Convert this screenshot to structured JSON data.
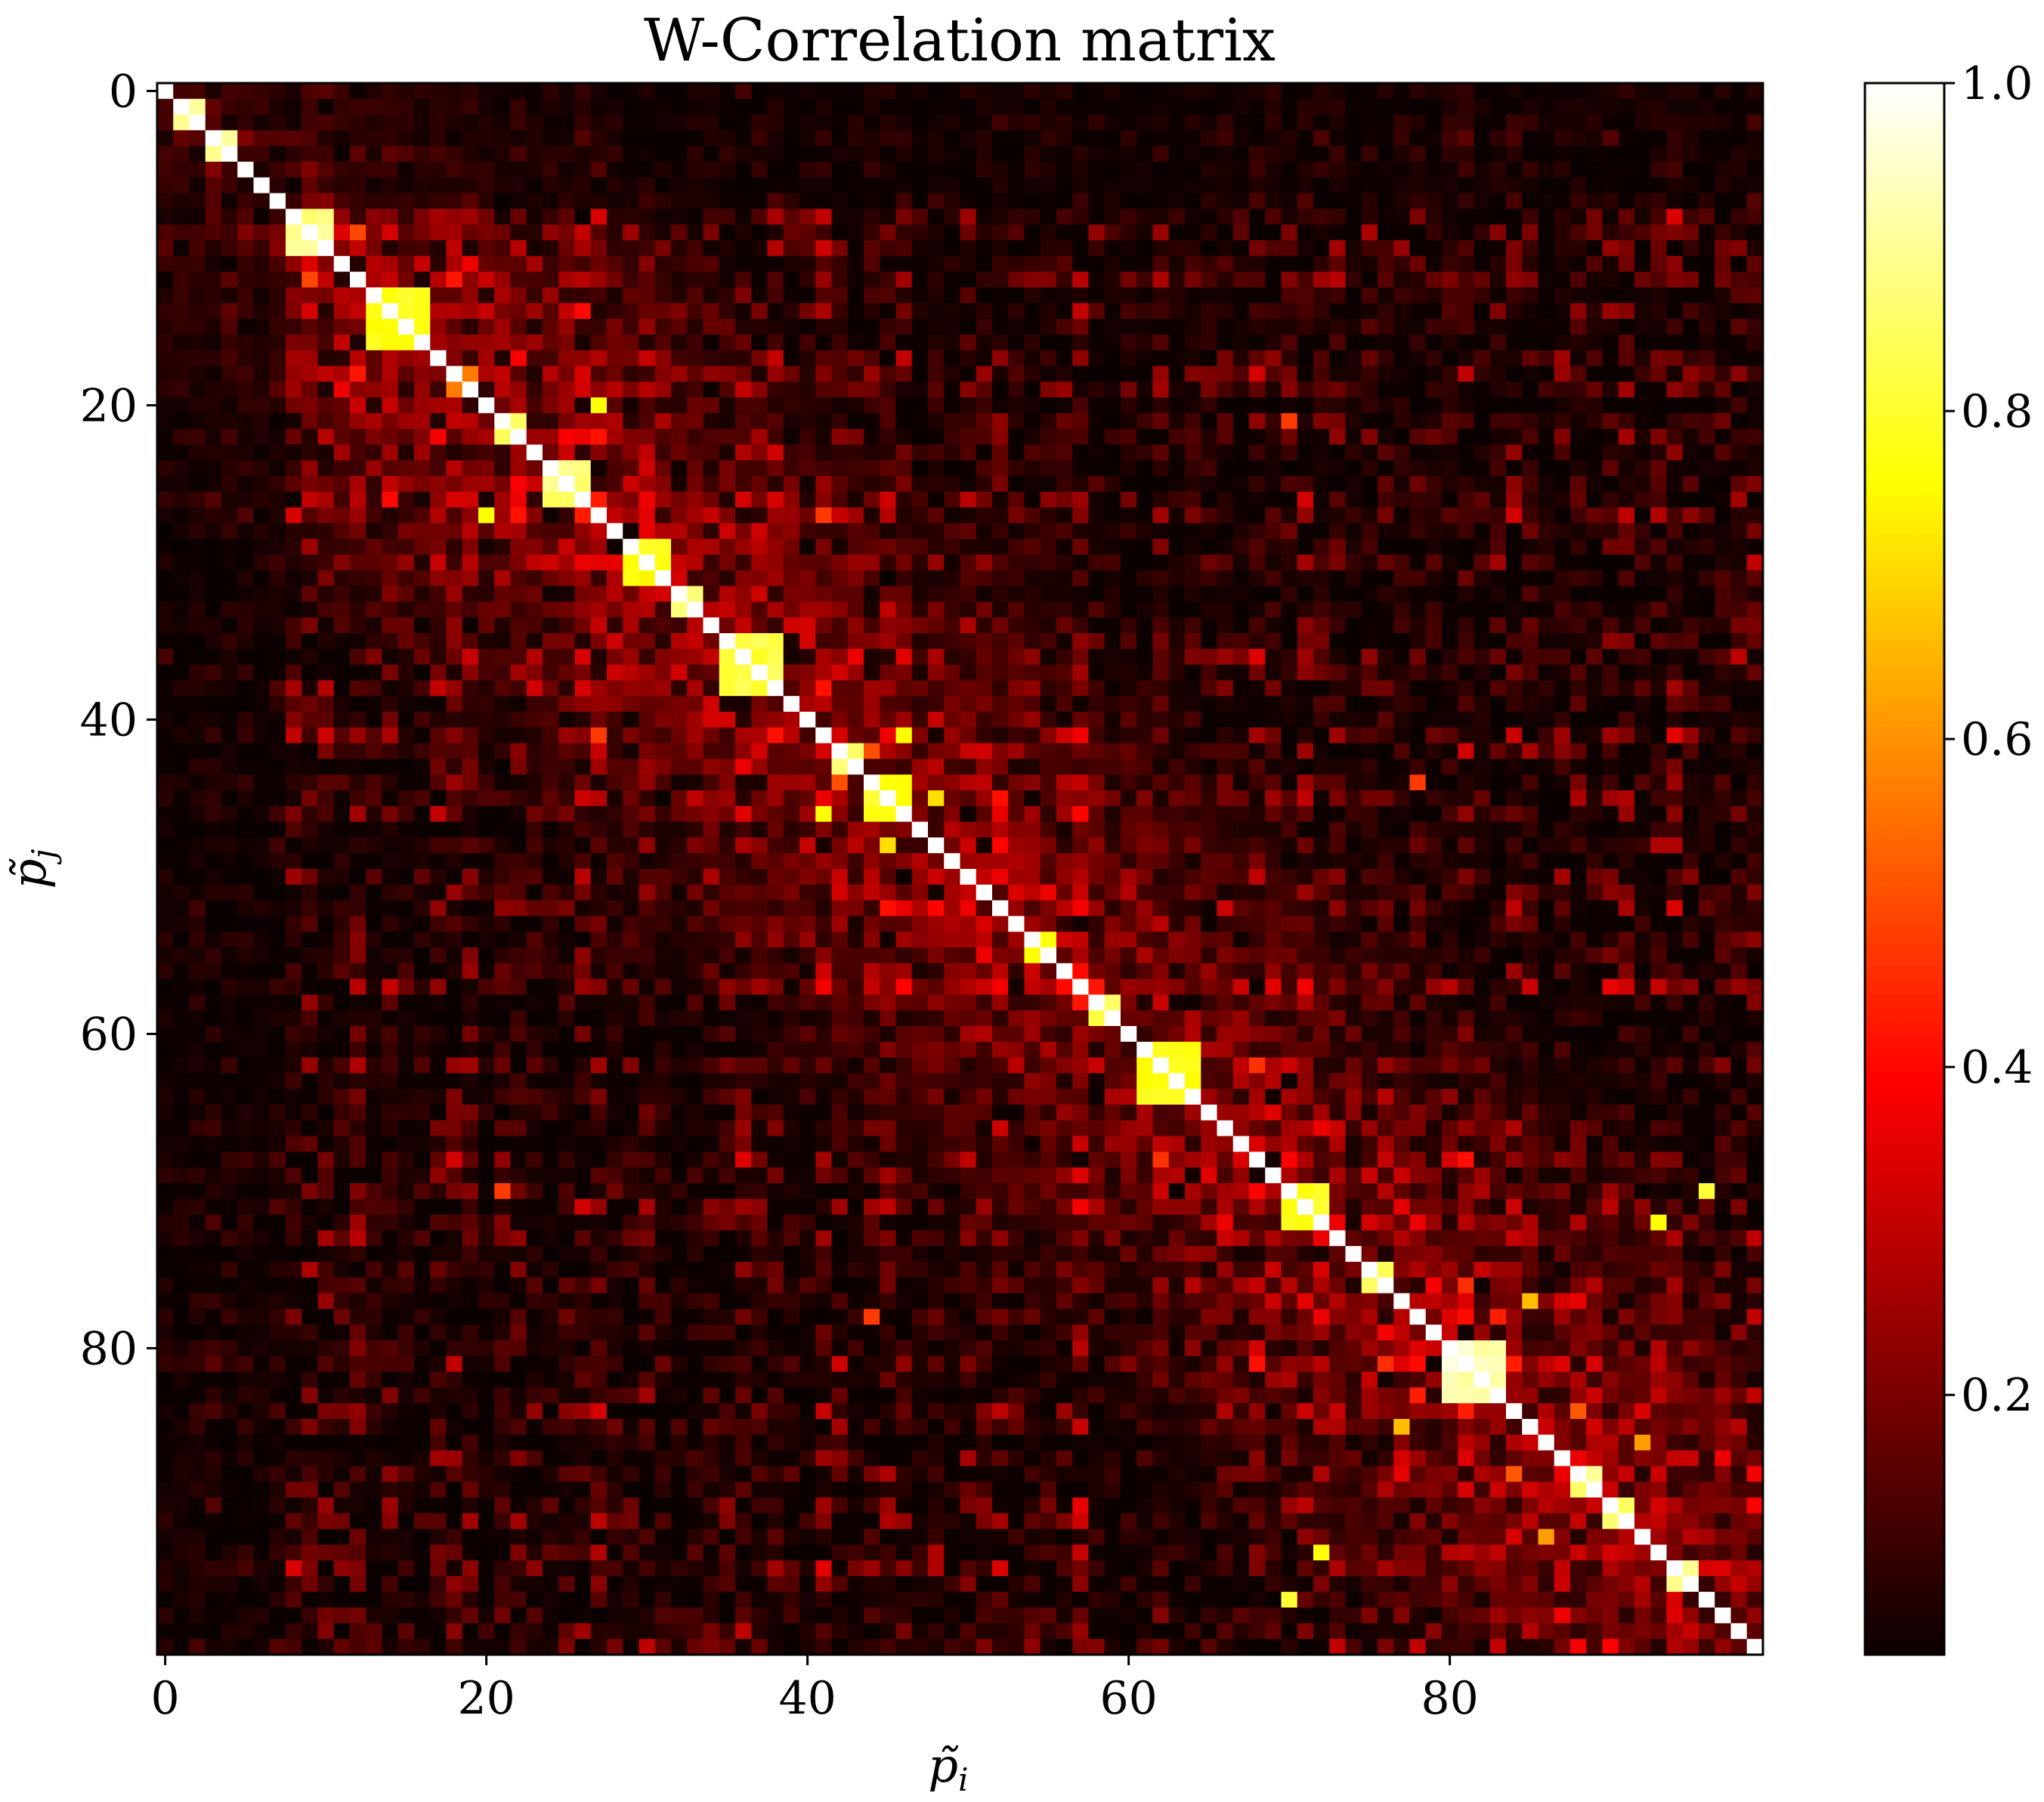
{
  "chart_data": {
    "type": "heatmap",
    "title": "W-Correlation matrix",
    "xlabel": "p̃",
    "xlabel_sub": "i",
    "ylabel": "p̃",
    "ylabel_sub": "j",
    "size": 100,
    "x_ticks": [
      0,
      20,
      40,
      60,
      80
    ],
    "y_ticks": [
      0,
      20,
      40,
      60,
      80
    ],
    "xlim": [
      -0.5,
      99.5
    ],
    "ylim": [
      99.5,
      -0.5
    ],
    "colormap": "hot",
    "colorbar": {
      "range": [
        0.0,
        1.0
      ],
      "ticks": [
        0.2,
        0.4,
        0.6,
        0.8,
        1.0
      ],
      "tick_labels": [
        "0.2",
        "0.4",
        "0.6",
        "0.8",
        "1.0"
      ]
    },
    "diagonal_value": 1.0,
    "diagonal_blocks": [
      {
        "start": 1,
        "end": 2,
        "value": 0.95
      },
      {
        "start": 3,
        "end": 4,
        "value": 0.95
      },
      {
        "start": 8,
        "end": 10,
        "value": 0.92
      },
      {
        "start": 13,
        "end": 16,
        "value": 0.8
      },
      {
        "start": 21,
        "end": 22,
        "value": 0.85
      },
      {
        "start": 24,
        "end": 26,
        "value": 0.9
      },
      {
        "start": 29,
        "end": 31,
        "value": 0.8
      },
      {
        "start": 32,
        "end": 33,
        "value": 0.9
      },
      {
        "start": 35,
        "end": 38,
        "value": 0.85
      },
      {
        "start": 42,
        "end": 43,
        "value": 0.88
      },
      {
        "start": 44,
        "end": 46,
        "value": 0.8
      },
      {
        "start": 54,
        "end": 55,
        "value": 0.8
      },
      {
        "start": 58,
        "end": 59,
        "value": 0.85
      },
      {
        "start": 61,
        "end": 64,
        "value": 0.8
      },
      {
        "start": 70,
        "end": 72,
        "value": 0.8
      },
      {
        "start": 75,
        "end": 76,
        "value": 0.85
      },
      {
        "start": 80,
        "end": 83,
        "value": 0.97
      },
      {
        "start": 88,
        "end": 89,
        "value": 0.9
      },
      {
        "start": 90,
        "end": 91,
        "value": 0.9
      },
      {
        "start": 94,
        "end": 95,
        "value": 0.9
      }
    ],
    "strong_cells": [
      {
        "row": 20,
        "col": 27,
        "value": 0.75
      },
      {
        "row": 27,
        "col": 20,
        "value": 0.75
      },
      {
        "row": 21,
        "col": 70,
        "value": 0.45
      },
      {
        "row": 70,
        "col": 21,
        "value": 0.45
      },
      {
        "row": 96,
        "col": 70,
        "value": 0.8
      },
      {
        "row": 70,
        "col": 96,
        "value": 0.8
      },
      {
        "row": 85,
        "col": 77,
        "value": 0.65
      },
      {
        "row": 77,
        "col": 85,
        "value": 0.65
      },
      {
        "row": 92,
        "col": 86,
        "value": 0.6
      },
      {
        "row": 86,
        "col": 92,
        "value": 0.6
      },
      {
        "row": 93,
        "col": 72,
        "value": 0.75
      },
      {
        "row": 72,
        "col": 93,
        "value": 0.75
      },
      {
        "row": 78,
        "col": 44,
        "value": 0.45
      },
      {
        "row": 44,
        "col": 78,
        "value": 0.45
      },
      {
        "row": 45,
        "col": 48,
        "value": 0.7
      },
      {
        "row": 48,
        "col": 45,
        "value": 0.7
      },
      {
        "row": 41,
        "col": 46,
        "value": 0.75
      },
      {
        "row": 46,
        "col": 41,
        "value": 0.75
      }
    ]
  }
}
